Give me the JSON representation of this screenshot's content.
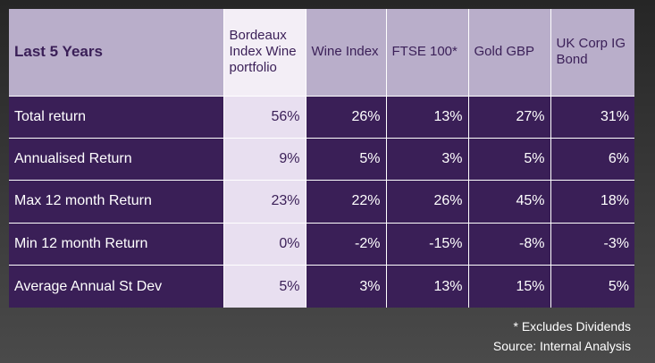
{
  "table": {
    "corner_label": "Last 5 Years",
    "columns": [
      "Bordeaux Index Wine portfolio",
      "Wine Index",
      "FTSE 100*",
      "Gold GBP",
      "UK Corp IG Bond"
    ],
    "rows": [
      {
        "label": "Total return",
        "values": [
          "56%",
          "26%",
          "13%",
          "27%",
          "31%"
        ]
      },
      {
        "label": "Annualised Return",
        "values": [
          "9%",
          "5%",
          "3%",
          "5%",
          "6%"
        ]
      },
      {
        "label": "Max 12 month Return",
        "values": [
          "23%",
          "22%",
          "26%",
          "45%",
          "18%"
        ]
      },
      {
        "label": "Min 12 month Return",
        "values": [
          "0%",
          "-2%",
          "-15%",
          "-8%",
          "-3%"
        ]
      },
      {
        "label": "Average Annual St Dev",
        "values": [
          "5%",
          "3%",
          "13%",
          "15%",
          "5%"
        ]
      }
    ]
  },
  "footnote": {
    "line1": "* Excludes Dividends",
    "line2": "Source: Internal Analysis"
  },
  "colors": {
    "table_body": "#3a1f57",
    "header_bg": "#b9aeca",
    "highlight_header": "#f3eef6",
    "highlight_cell": "#e8dff0"
  }
}
